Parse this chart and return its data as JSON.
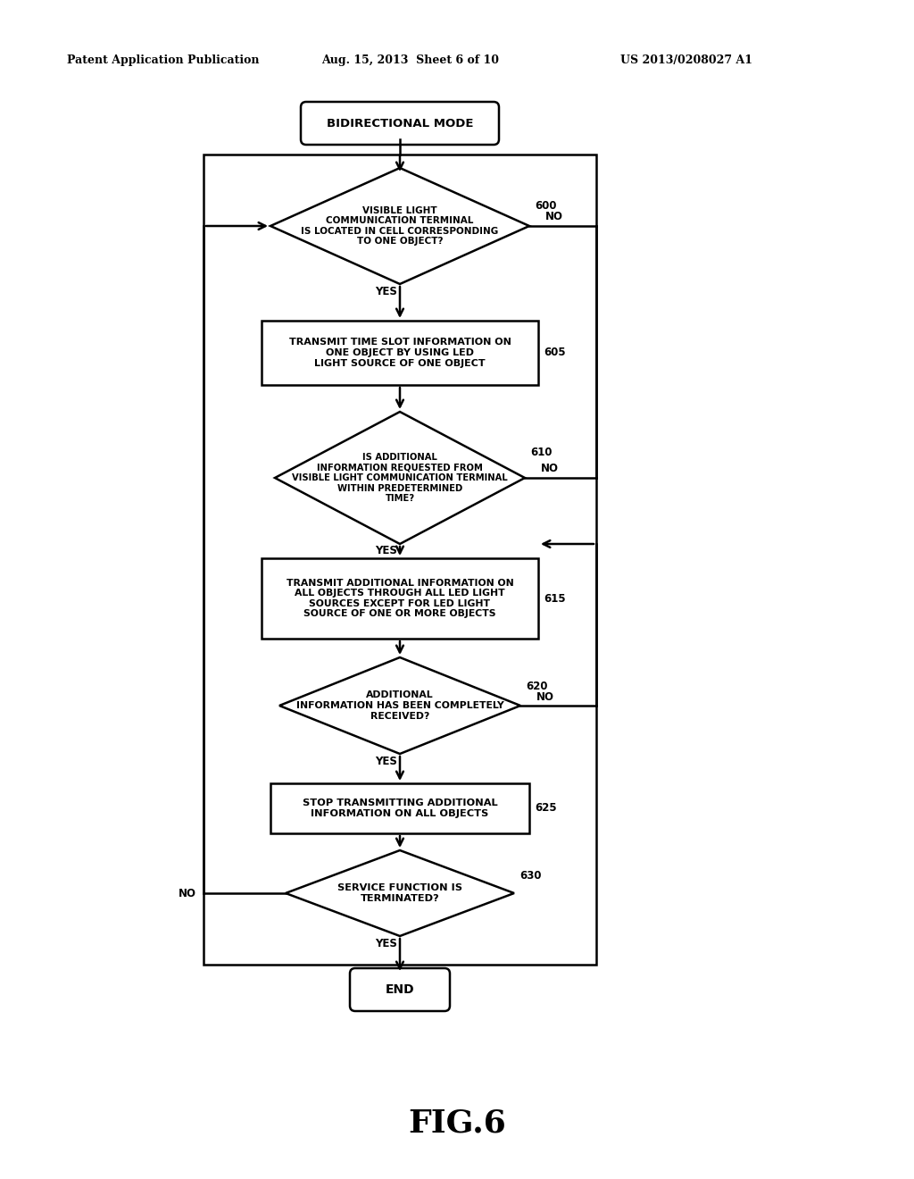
{
  "bg_color": "#ffffff",
  "header_left": "Patent Application Publication",
  "header_mid": "Aug. 15, 2013  Sheet 6 of 10",
  "header_right": "US 2013/0208027 A1",
  "figure_label": "FIG.6",
  "text_color": "#000000",
  "line_color": "#000000",
  "nodes": {
    "start": {
      "text": "BIDIRECTIONAL MODE"
    },
    "d600": {
      "text": "VISIBLE LIGHT\nCOMMUNICATION TERMINAL\nIS LOCATED IN CELL CORRESPONDING\nTO ONE OBJECT?",
      "label": "600"
    },
    "b605": {
      "text": "TRANSMIT TIME SLOT INFORMATION ON\nONE OBJECT BY USING LED\nLIGHT SOURCE OF ONE OBJECT",
      "label": "605"
    },
    "d610": {
      "text": "IS ADDITIONAL\nINFORMATION REQUESTED FROM\nVISIBLE LIGHT COMMUNICATION TERMINAL\nWITHIN PREDETERMINED\nTIME?",
      "label": "610"
    },
    "b615": {
      "text": "TRANSMIT ADDITIONAL INFORMATION ON\nALL OBJECTS THROUGH ALL LED LIGHT\nSOURCES EXCEPT FOR LED LIGHT\nSOURCE OF ONE OR MORE OBJECTS",
      "label": "615"
    },
    "d620": {
      "text": "ADDITIONAL\nINFORMATION HAS BEEN COMPLETELY\nRECEIVED?",
      "label": "620"
    },
    "b625": {
      "text": "STOP TRANSMITTING ADDITIONAL\nINFORMATION ON ALL OBJECTS",
      "label": "625"
    },
    "d630": {
      "text": "SERVICE FUNCTION IS\nTERMINATED?",
      "label": "630"
    },
    "end": {
      "text": "END"
    }
  }
}
